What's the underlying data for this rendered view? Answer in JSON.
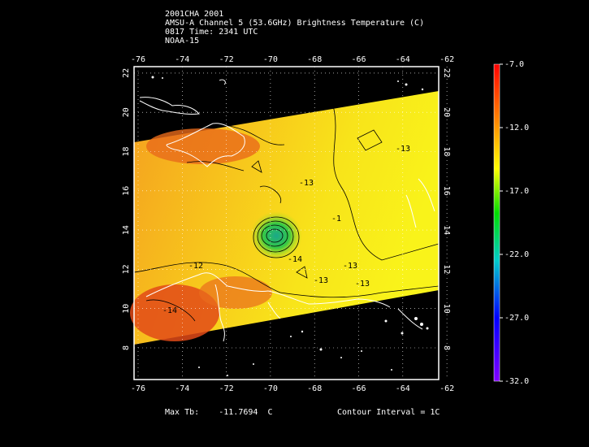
{
  "header": {
    "line1": "2001CHA 2001",
    "line2": "AMSU-A Channel 5 (53.6GHz) Brightness Temperature (C)",
    "line3": "0817 Time: 2341 UTC",
    "line4": "NOAA-15"
  },
  "map": {
    "lon_ticks": [
      "-76",
      "-74",
      "-72",
      "-70",
      "-68",
      "-66",
      "-64",
      "-62"
    ],
    "lat_ticks": [
      "8",
      "10",
      "12",
      "14",
      "16",
      "18",
      "20",
      "22"
    ],
    "contour_labels": [
      "-12",
      "-14",
      "-13",
      "-13",
      "-13",
      "-13",
      "-13",
      "-1",
      "-14"
    ]
  },
  "colorbar": {
    "labels": [
      "-7.0",
      "-12.0",
      "-17.0",
      "-22.0",
      "-27.0",
      "-32.0"
    ],
    "colors": [
      "#ff0000",
      "#ff8000",
      "#ffff00",
      "#00dd00",
      "#00cccc",
      "#0000ff",
      "#8000ff"
    ]
  },
  "footer": {
    "max_label": "Max Tb:",
    "max_value": "-11.7694",
    "max_unit": "C",
    "interval": "Contour Interval = 1C"
  }
}
